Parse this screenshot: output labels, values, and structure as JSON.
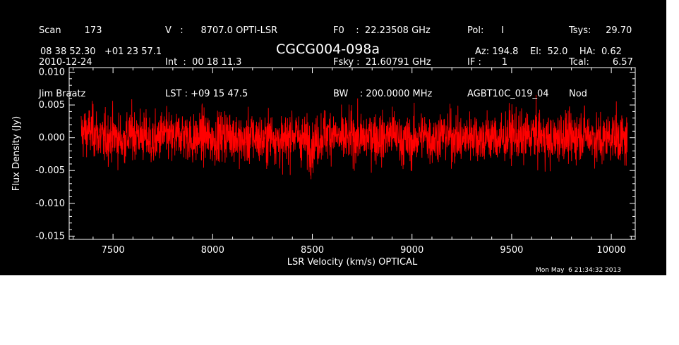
{
  "header": {
    "col1": [
      "Scan        173",
      "2010-12-24",
      "Jim Braatz"
    ],
    "col2": [
      "V   :      8707.0 OPTI-LSR",
      "Int  :  00 18 11.3",
      "LST : +09 15 47.5"
    ],
    "col3": [
      "F0    :  22.23508 GHz",
      "Fsky :  21.60791 GHz",
      "BW    : 200.0000 MHz"
    ],
    "col4": [
      "Pol:      I",
      "IF :       1",
      "AGBT10C_019_04"
    ],
    "col5": [
      "Tsys:     29.70",
      "Tcal:        6.57",
      "Nod"
    ],
    "coords": "08 38 52.30   +01 23 57.1",
    "source": "CGCG004-098a",
    "pointing": "Az: 194.8    El:  52.0    HA:  0.62",
    "timestamp": "Mon May  6 21:34:32 2013"
  },
  "colors": {
    "background": "#000000",
    "axes": "#ffffff",
    "trace": "#ff0000"
  },
  "chart_data": {
    "type": "line",
    "title": "CGCG004-098a",
    "xlabel": "LSR Velocity (km/s) OPTICAL",
    "ylabel": "Flux Density (Jy)",
    "xlim": [
      7280,
      10120
    ],
    "ylim": [
      -0.0155,
      0.0107
    ],
    "xticks": [
      7500,
      8000,
      8500,
      9000,
      9500,
      10000
    ],
    "xtick_labels": [
      "7500",
      "8000",
      "8500",
      "9000",
      "9500",
      "10000"
    ],
    "yticks": [
      0.01,
      0.005,
      0.0,
      -0.005,
      -0.01,
      -0.015
    ],
    "ytick_labels": [
      "0.010",
      "0.005",
      "0.000",
      "-0.005",
      "-0.010",
      "-0.015"
    ],
    "grid": false,
    "legend": "none",
    "series": [
      {
        "x": [
          7340,
          7400,
          7450,
          7500,
          7550,
          7600,
          7650,
          7700,
          7750,
          7800,
          7850,
          7900,
          7950,
          8000,
          8050,
          8100,
          8150,
          8200,
          8250,
          8300,
          8350,
          8400,
          8450,
          8500,
          8550,
          8600,
          8650,
          8700,
          8750,
          8800,
          8850,
          8900,
          8950,
          9000,
          9050,
          9100,
          9150,
          9200,
          9250,
          9300,
          9350,
          9400,
          9450,
          9500,
          9550,
          9600,
          9650,
          9700,
          9750,
          9800,
          9850,
          9900,
          9950,
          10000,
          10050,
          10080
        ],
        "y": [
          0.003,
          0.004,
          -0.001,
          0.0015,
          -0.002,
          0.003,
          0.001,
          -0.003,
          0.002,
          -0.001,
          0.003,
          -0.002,
          0.0015,
          -0.0015,
          0.002,
          0.0025,
          -0.003,
          0.001,
          -0.002,
          0.002,
          -0.004,
          0.003,
          -0.001,
          -0.005,
          0.002,
          0.003,
          -0.002,
          0.001,
          -0.001,
          0.002,
          -0.001,
          0.003,
          -0.002,
          -0.003,
          0.002,
          -0.001,
          0.002,
          0.001,
          -0.002,
          0.003,
          -0.001,
          0.001,
          -0.002,
          0.003,
          -0.001,
          0.002,
          0.001,
          -0.003,
          0.002,
          -0.001,
          0.003,
          0.001,
          -0.002,
          0.002,
          -0.001,
          -0.002
        ]
      }
    ]
  }
}
